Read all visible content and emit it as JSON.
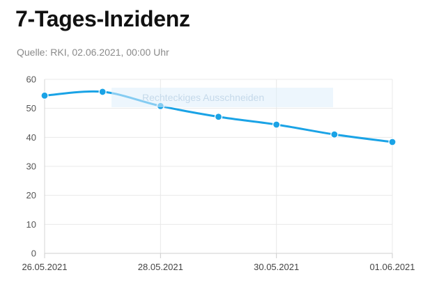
{
  "header": {
    "title": "7-Tages-Inzidenz",
    "source": "Quelle: RKI, 02.06.2021, 00:00 Uhr"
  },
  "overlay": {
    "label": "Rechteckiges Ausschneiden"
  },
  "chart_data": {
    "type": "line",
    "title": "7-Tages-Inzidenz",
    "subtitle": "Quelle: RKI, 02.06.2021, 00:00 Uhr",
    "xlabel": "",
    "ylabel": "",
    "x": [
      "26.05.2021",
      "27.05.2021",
      "28.05.2021",
      "29.05.2021",
      "30.05.2021",
      "31.05.2021",
      "01.06.2021"
    ],
    "x_tick_labels": [
      "26.05.2021",
      "28.05.2021",
      "30.05.2021",
      "01.06.2021"
    ],
    "y_ticks": [
      0,
      10,
      20,
      30,
      40,
      50,
      60
    ],
    "ylim": [
      0,
      60
    ],
    "grid": true,
    "legend": "none",
    "series": [
      {
        "values": [
          54.4,
          55.7,
          50.8,
          47.1,
          44.4,
          41.0,
          38.4
        ],
        "color": "#1aa3e6"
      }
    ]
  }
}
